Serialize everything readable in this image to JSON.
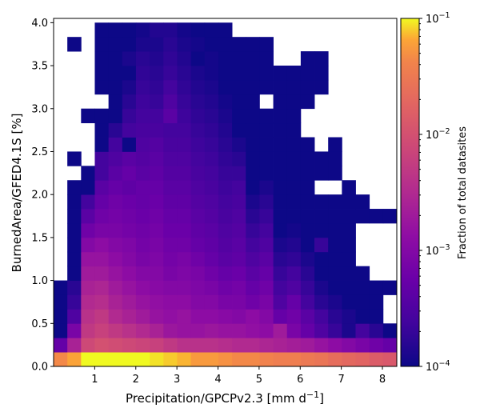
{
  "chart_data": {
    "type": "heatmap",
    "xlabel": "Precipitation/GPCPv2.3 [mm d",
    "xlabel_sup": "−1",
    "xlabel_end": "]",
    "ylabel": "BurnedArea/GFED4.1S [%]",
    "colorbar_label": "Fraction of total datasites",
    "colorbar_scale": "log",
    "colorbar_range": [
      0.0001,
      0.1
    ],
    "colormap": "plasma",
    "xlim": [
      0,
      8.35
    ],
    "ylim": [
      0,
      4.05
    ],
    "x_bin_width": 0.334,
    "y_bin_width": 0.1667,
    "x_ticks": [
      1,
      2,
      3,
      4,
      5,
      6,
      7,
      8
    ],
    "y_ticks": [
      0.0,
      0.5,
      1.0,
      1.5,
      2.0,
      2.5,
      3.0,
      3.5,
      4.0
    ],
    "x_tick_labels": [
      "1",
      "2",
      "3",
      "4",
      "5",
      "6",
      "7",
      "8"
    ],
    "y_tick_labels": [
      "0.0",
      "0.5",
      "1.0",
      "1.5",
      "2.0",
      "2.5",
      "3.0",
      "3.5",
      "4.0"
    ],
    "colorbar_tick_labels": [
      {
        "base": "10",
        "exp": "−1"
      },
      {
        "base": "10",
        "exp": "−2"
      },
      {
        "base": "10",
        "exp": "−3"
      },
      {
        "base": "10",
        "exp": "−4"
      }
    ],
    "grid_log10_fraction_rows_bottom_to_top": [
      [
        -1.35,
        -1.2,
        -1.0,
        -1.0,
        -1.0,
        -1.0,
        -1.0,
        -1.05,
        -1.1,
        -1.15,
        -1.25,
        -1.25,
        -1.3,
        -1.35,
        -1.35,
        -1.4,
        -1.45,
        -1.45,
        -1.5,
        -1.55,
        -1.65,
        -1.7,
        -1.75,
        -1.85,
        -1.9
      ],
      [
        -3.3,
        -2.6,
        -2.1,
        -2.0,
        -2.05,
        -2.1,
        -2.15,
        -2.2,
        -2.3,
        -2.4,
        -2.4,
        -2.4,
        -2.45,
        -2.5,
        -2.5,
        -2.55,
        -2.6,
        -2.65,
        -2.7,
        -2.8,
        -2.9,
        -3.0,
        -3.1,
        -3.2,
        -3.3
      ],
      [
        -4.0,
        -3.1,
        -2.3,
        -2.2,
        -2.3,
        -2.4,
        -2.5,
        -2.6,
        -2.75,
        -2.8,
        -2.8,
        -2.75,
        -2.8,
        -2.8,
        -2.85,
        -2.9,
        -2.7,
        -3.1,
        -3.3,
        -3.5,
        -3.7,
        -3.9,
        -3.6,
        -3.8,
        -4.0
      ],
      [
        -4.0,
        -3.5,
        -2.4,
        -2.3,
        -2.5,
        -2.6,
        -2.7,
        -2.8,
        -2.85,
        -2.8,
        -2.9,
        -2.9,
        -2.95,
        -3.0,
        -2.9,
        -3.0,
        -3.3,
        -3.2,
        -3.4,
        -3.6,
        -3.8,
        -3.9,
        -4.0,
        -4.0,
        null
      ],
      [
        -4.0,
        -3.7,
        -2.5,
        -2.45,
        -2.6,
        -2.7,
        -2.8,
        -2.85,
        -2.9,
        -2.9,
        -3.0,
        -3.0,
        -3.1,
        -3.1,
        -3.2,
        -3.1,
        -3.5,
        -3.3,
        -3.6,
        -3.8,
        -3.9,
        -4.0,
        -4.0,
        -4.0,
        null
      ],
      [
        -4.0,
        -3.8,
        -2.6,
        -2.55,
        -2.7,
        -2.8,
        -2.9,
        -2.95,
        -3.0,
        -3.0,
        -3.05,
        -3.1,
        -3.2,
        -3.15,
        -3.3,
        -3.2,
        -3.6,
        -3.5,
        -3.7,
        -3.9,
        -4.0,
        -4.0,
        -4.0,
        -4.0,
        -4.0
      ],
      [
        null,
        -4.0,
        -2.7,
        -2.7,
        -2.8,
        -2.9,
        -3.0,
        -3.0,
        -3.1,
        -3.05,
        -3.1,
        -3.2,
        -3.3,
        -3.25,
        -3.4,
        -3.3,
        -3.7,
        -3.6,
        -3.8,
        -4.0,
        -4.0,
        -4.0,
        -4.0,
        null,
        null
      ],
      [
        null,
        -4.0,
        -2.8,
        -2.8,
        -2.9,
        -3.0,
        -3.1,
        -3.05,
        -3.15,
        -3.1,
        -3.2,
        -3.3,
        -3.4,
        -3.35,
        -3.5,
        -3.4,
        -3.8,
        -3.75,
        -3.9,
        -4.0,
        -4.0,
        -4.0,
        null,
        null,
        null
      ],
      [
        null,
        -4.0,
        -3.0,
        -2.9,
        -3.0,
        -3.05,
        -3.15,
        -3.1,
        -3.2,
        -3.2,
        -3.3,
        -3.35,
        -3.45,
        -3.4,
        -3.6,
        -3.5,
        -3.9,
        -3.85,
        -4.0,
        -3.7,
        -4.0,
        -4.0,
        null,
        null,
        null
      ],
      [
        null,
        -4.0,
        -3.2,
        -3.1,
        -3.1,
        -3.15,
        -3.2,
        -3.15,
        -3.25,
        -3.25,
        -3.35,
        -3.4,
        -3.5,
        -3.45,
        -3.7,
        -3.6,
        -4.0,
        -3.95,
        -4.0,
        -4.0,
        -4.0,
        -4.0,
        null,
        null,
        null
      ],
      [
        null,
        -4.0,
        -3.4,
        -3.2,
        -3.15,
        -3.2,
        -3.25,
        -3.2,
        -3.3,
        -3.3,
        -3.4,
        -3.45,
        -3.55,
        -3.5,
        -3.8,
        -3.7,
        -4.0,
        -4.0,
        -4.0,
        -4.0,
        -4.0,
        -4.0,
        -4.0,
        -4.0,
        -4.0
      ],
      [
        null,
        -4.0,
        -3.6,
        -3.3,
        -3.2,
        -3.25,
        -3.3,
        -3.25,
        -3.35,
        -3.35,
        -3.45,
        -3.5,
        -3.6,
        -3.55,
        -3.9,
        -3.8,
        -4.0,
        -4.0,
        -4.0,
        -4.0,
        -4.0,
        -4.0,
        -4.0,
        null,
        null
      ],
      [
        null,
        -4.0,
        -4.0,
        -3.4,
        -3.3,
        -3.35,
        -3.3,
        -3.3,
        -3.4,
        -3.4,
        -3.5,
        -3.55,
        -3.65,
        -3.6,
        -4.0,
        -3.9,
        -4.0,
        -4.0,
        -4.0,
        null,
        null,
        -4.0,
        null,
        null,
        null
      ],
      [
        null,
        null,
        -4.0,
        -3.6,
        -3.4,
        -3.3,
        -3.4,
        -3.35,
        -3.45,
        -3.45,
        -3.55,
        -3.6,
        -3.7,
        -3.7,
        -4.0,
        -4.0,
        -4.0,
        -4.0,
        -4.0,
        -4.0,
        -4.0,
        null,
        null,
        null,
        null
      ],
      [
        null,
        -4.0,
        null,
        -3.6,
        -3.5,
        -3.4,
        -3.45,
        -3.4,
        -3.5,
        -3.5,
        -3.6,
        -3.65,
        -3.75,
        -3.8,
        -4.0,
        -4.0,
        -4.0,
        -4.0,
        -4.0,
        -4.0,
        -4.0,
        null,
        null,
        null,
        null
      ],
      [
        null,
        null,
        null,
        -4.0,
        -3.6,
        -4.0,
        -3.5,
        -3.45,
        -3.55,
        -3.55,
        -3.65,
        -3.7,
        -3.8,
        -3.9,
        -4.0,
        -4.0,
        -4.0,
        -4.0,
        -4.0,
        null,
        -4.0,
        null,
        null,
        null,
        null
      ],
      [
        null,
        null,
        null,
        -4.0,
        -3.8,
        -3.6,
        -3.55,
        -3.55,
        -3.6,
        -3.6,
        -3.7,
        -3.75,
        -3.85,
        -4.0,
        -4.0,
        -4.0,
        -4.0,
        -4.0,
        null,
        null,
        null,
        null,
        null,
        null,
        null
      ],
      [
        null,
        null,
        -4.0,
        -4.0,
        -4.0,
        -3.7,
        -3.6,
        -3.6,
        -3.4,
        -3.65,
        -3.75,
        -3.8,
        -3.9,
        -4.0,
        -4.0,
        -4.0,
        -4.0,
        -4.0,
        null,
        null,
        null,
        null,
        null,
        null,
        null
      ],
      [
        null,
        null,
        null,
        null,
        -4.0,
        -3.8,
        -3.65,
        -3.7,
        -3.5,
        -3.7,
        -3.8,
        -3.85,
        -3.95,
        -4.0,
        -4.0,
        null,
        -4.0,
        -4.0,
        -4.0,
        null,
        null,
        null,
        null,
        null,
        null
      ],
      [
        null,
        null,
        null,
        -4.0,
        -4.0,
        -3.9,
        -3.7,
        -3.75,
        -3.6,
        -3.75,
        -3.85,
        -3.9,
        -4.0,
        -4.0,
        -4.0,
        -4.0,
        -4.0,
        -4.0,
        -4.0,
        -4.0,
        null,
        null,
        null,
        null,
        null
      ],
      [
        null,
        null,
        null,
        -4.0,
        -4.0,
        -4.0,
        -3.75,
        -3.8,
        -3.7,
        -3.8,
        -3.9,
        -3.95,
        -4.0,
        -4.0,
        -4.0,
        -4.0,
        -4.0,
        -4.0,
        -4.0,
        -4.0,
        null,
        null,
        null,
        null,
        null
      ],
      [
        null,
        null,
        null,
        -4.0,
        -4.0,
        -3.9,
        -3.8,
        -3.85,
        -3.75,
        -3.85,
        -4.0,
        -3.95,
        -4.0,
        -4.0,
        -4.0,
        -4.0,
        null,
        null,
        -4.0,
        -4.0,
        null,
        null,
        null,
        null,
        null
      ],
      [
        null,
        -4.0,
        null,
        -4.0,
        -4.0,
        -4.0,
        -3.9,
        -3.9,
        -3.8,
        -3.9,
        -3.95,
        -4.0,
        -4.0,
        -4.0,
        -4.0,
        -4.0,
        null,
        null,
        null,
        null,
        null,
        null,
        null,
        null,
        null
      ],
      [
        null,
        null,
        null,
        -4.0,
        -4.0,
        -4.0,
        -3.95,
        -3.85,
        -3.85,
        -3.95,
        -4.0,
        -4.0,
        -4.0,
        null,
        null,
        null,
        null,
        null,
        null,
        null,
        null,
        null,
        null,
        null,
        null
      ]
    ]
  }
}
